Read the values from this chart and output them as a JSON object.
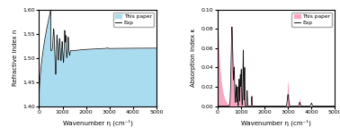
{
  "left_plot": {
    "xlabel": "Wavenumber η (cm⁻¹)",
    "ylabel": "Refractive index n",
    "xlim": [
      0,
      5000
    ],
    "ylim": [
      1.4,
      1.6
    ],
    "yticks": [
      1.4,
      1.45,
      1.5,
      1.55,
      1.6
    ],
    "fill_color": "#aadcef",
    "line_color": "#111111",
    "legend_fill_label": "This paper",
    "legend_line_label": "Exp"
  },
  "right_plot": {
    "xlabel": "Wavenumber η (cm⁻¹)",
    "ylabel": "Absorption index κ",
    "xlim": [
      0,
      5000
    ],
    "ylim": [
      0,
      0.1
    ],
    "yticks": [
      0,
      0.02,
      0.04,
      0.06,
      0.08,
      0.1
    ],
    "fill_color": "#f9a8c4",
    "line_color": "#111111",
    "legend_fill_label": "This paper",
    "legend_line_label": "Exp"
  },
  "fig_width": 3.78,
  "fig_height": 1.52,
  "dpi": 100
}
